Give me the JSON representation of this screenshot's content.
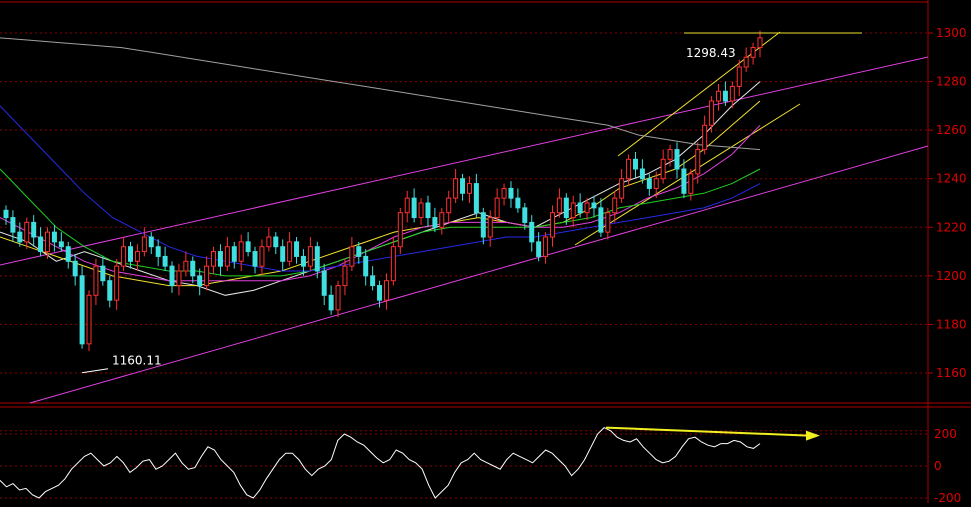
{
  "chart_data": [
    {
      "type": "candlestick",
      "title": "",
      "xlabel": "",
      "ylabel": "",
      "ylim": [
        1146,
        1310
      ],
      "y_ticks": [
        1160,
        1180,
        1200,
        1220,
        1240,
        1260,
        1280,
        1300
      ],
      "grid": true,
      "annotations": [
        {
          "text": "1298.43",
          "value": 1298.43
        },
        {
          "text": "1160.11",
          "value": 1160.11
        }
      ],
      "close_path": [
        1224,
        1218,
        1214,
        1222,
        1216,
        1210,
        1218,
        1214,
        1212,
        1206,
        1200,
        1172,
        1192,
        1204,
        1198,
        1190,
        1204,
        1212,
        1206,
        1210,
        1216,
        1212,
        1208,
        1204,
        1196,
        1202,
        1206,
        1200,
        1196,
        1204,
        1210,
        1204,
        1212,
        1206,
        1214,
        1210,
        1204,
        1212,
        1216,
        1212,
        1206,
        1214,
        1208,
        1204,
        1212,
        1202,
        1192,
        1186,
        1196,
        1204,
        1212,
        1208,
        1200,
        1196,
        1190,
        1198,
        1212,
        1226,
        1232,
        1224,
        1230,
        1224,
        1220,
        1226,
        1232,
        1240,
        1234,
        1238,
        1226,
        1216,
        1224,
        1232,
        1236,
        1232,
        1228,
        1222,
        1214,
        1208,
        1216,
        1226,
        1232,
        1224,
        1230,
        1226,
        1230,
        1228,
        1218,
        1226,
        1232,
        1240,
        1248,
        1244,
        1240,
        1236,
        1240,
        1248,
        1252,
        1244,
        1234,
        1242,
        1252,
        1262,
        1272,
        1276,
        1272,
        1278,
        1286,
        1290,
        1294,
        1298
      ],
      "series": [
        {
          "color": "#e8e8e8",
          "values": [
            1218,
            1214,
            1206,
            1210,
            1206,
            1202,
            1198,
            1196,
            1192,
            1194,
            1198,
            1202,
            1206,
            1210,
            1214,
            1218,
            1222,
            1226,
            1222,
            1220,
            1226,
            1232,
            1238,
            1242,
            1248,
            1258,
            1270,
            1280
          ]
        },
        {
          "color": "#f0e030",
          "values": [
            1216,
            1212,
            1208,
            1204,
            1200,
            1198,
            1196,
            1196,
            1198,
            1200,
            1202,
            1206,
            1210,
            1214,
            1218,
            1220,
            1222,
            1224,
            1222,
            1220,
            1222,
            1228,
            1236,
            1240,
            1244,
            1252,
            1262,
            1272
          ]
        },
        {
          "color": "#e040e0",
          "values": [
            1224,
            1218,
            1212,
            1206,
            1202,
            1200,
            1198,
            1198,
            1198,
            1198,
            1198,
            1200,
            1204,
            1210,
            1216,
            1220,
            1222,
            1222,
            1222,
            1220,
            1220,
            1222,
            1226,
            1232,
            1236,
            1242,
            1250,
            1262
          ]
        },
        {
          "color": "#20d020",
          "values": [
            1244,
            1232,
            1220,
            1212,
            1206,
            1204,
            1202,
            1202,
            1200,
            1200,
            1200,
            1202,
            1206,
            1210,
            1214,
            1218,
            1220,
            1220,
            1220,
            1220,
            1222,
            1224,
            1228,
            1230,
            1232,
            1234,
            1238,
            1244
          ]
        },
        {
          "color": "#2828e8",
          "values": [
            1270,
            1258,
            1246,
            1234,
            1224,
            1218,
            1212,
            1208,
            1206,
            1204,
            1202,
            1202,
            1204,
            1206,
            1208,
            1210,
            1212,
            1214,
            1216,
            1216,
            1218,
            1220,
            1222,
            1224,
            1226,
            1228,
            1232,
            1238
          ]
        },
        {
          "color": "#a0a0a0",
          "values": [
            1298,
            1297,
            1296,
            1295,
            1294,
            1292,
            1290,
            1288,
            1286,
            1284,
            1282,
            1280,
            1278,
            1276,
            1274,
            1272,
            1270,
            1268,
            1266,
            1264,
            1262,
            1258,
            1256,
            1254,
            1253,
            1252
          ]
        }
      ]
    },
    {
      "type": "line",
      "title": "",
      "ylim": [
        -200,
        220
      ],
      "y_ticks": [
        -200,
        0,
        200
      ],
      "series": [
        {
          "color": "#ffffff",
          "values": [
            -90,
            -130,
            -110,
            -150,
            -140,
            -180,
            -200,
            -160,
            -140,
            -120,
            -80,
            -20,
            20,
            60,
            80,
            40,
            0,
            20,
            60,
            20,
            -40,
            -10,
            30,
            40,
            -20,
            0,
            40,
            80,
            20,
            -20,
            -10,
            60,
            120,
            100,
            40,
            0,
            -40,
            -120,
            -180,
            -200,
            -150,
            -80,
            -20,
            40,
            80,
            80,
            40,
            -20,
            -60,
            -20,
            0,
            40,
            160,
            200,
            180,
            150,
            130,
            90,
            50,
            20,
            40,
            100,
            80,
            40,
            20,
            -20,
            -120,
            -200,
            -160,
            -120,
            -40,
            20,
            40,
            80,
            40,
            20,
            0,
            -20,
            40,
            80,
            60,
            40,
            20,
            60,
            100,
            80,
            40,
            0,
            -60,
            -20,
            40,
            120,
            200,
            240,
            220,
            180,
            160,
            150,
            170,
            120,
            80,
            40,
            20,
            30,
            60,
            120,
            170,
            180,
            150,
            130,
            120,
            140,
            140,
            160,
            150,
            120,
            110,
            140
          ]
        },
        {
          "color": "#f0f020",
          "values": [
            240,
            190
          ]
        }
      ]
    }
  ]
}
